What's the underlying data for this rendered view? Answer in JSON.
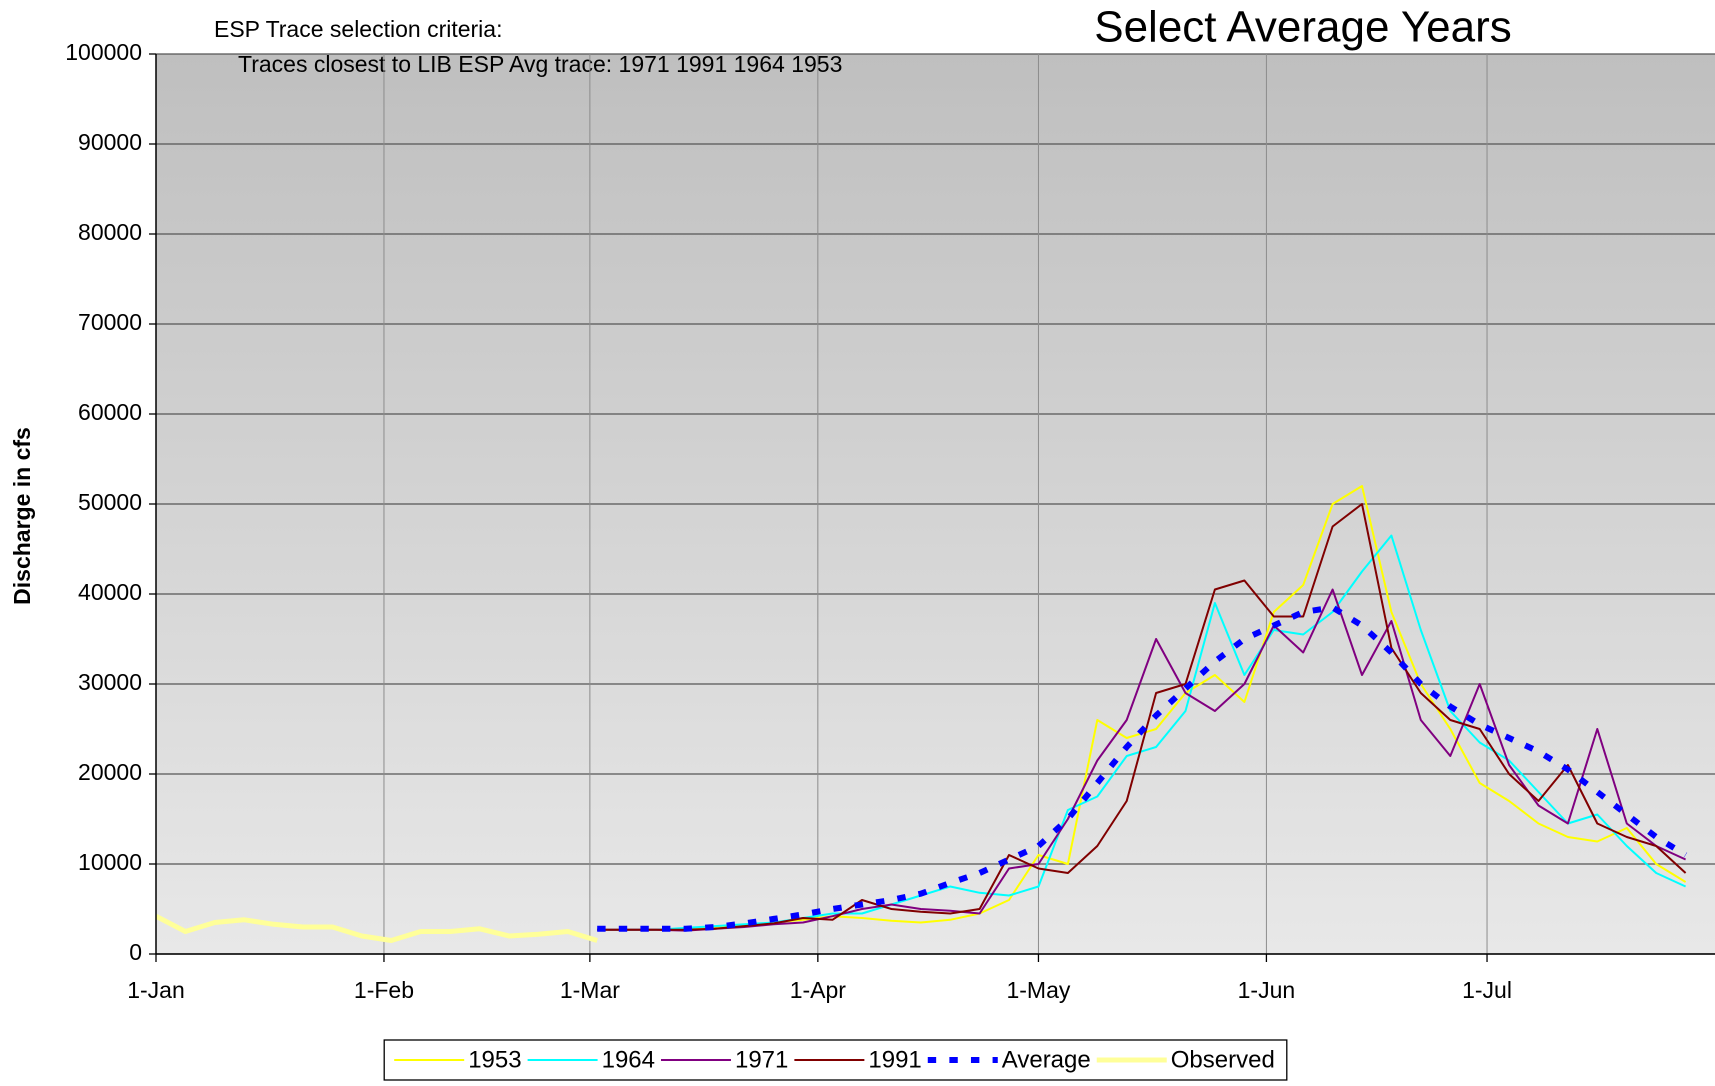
{
  "chart_data": {
    "type": "line",
    "title": "Select Average Years",
    "annotations": [
      "ESP Trace selection criteria:",
      "Traces closest to LIB ESP Avg trace:  1971 1991 1964 1953"
    ],
    "y_label": "Discharge in cfs",
    "x": [
      0,
      4,
      8,
      12,
      16,
      20,
      24,
      28,
      32,
      36,
      40,
      44,
      48,
      52,
      56,
      60,
      64,
      68,
      72,
      76,
      80,
      84,
      88,
      92,
      96,
      100,
      104,
      108,
      112,
      116,
      120,
      124,
      128,
      132,
      136,
      140,
      144,
      148,
      152,
      156,
      160,
      164,
      168,
      172,
      176,
      180,
      184,
      188,
      192,
      196,
      200,
      204,
      208
    ],
    "xlim": [
      0,
      212
    ],
    "xticks": [
      {
        "value": 0,
        "label": "1-Jan"
      },
      {
        "value": 31,
        "label": "1-Feb"
      },
      {
        "value": 59,
        "label": "1-Mar"
      },
      {
        "value": 90,
        "label": "1-Apr"
      },
      {
        "value": 120,
        "label": "1-May"
      },
      {
        "value": 151,
        "label": "1-Jun"
      },
      {
        "value": 181,
        "label": "1-Jul"
      }
    ],
    "ylim": [
      0,
      100000
    ],
    "yticks": [
      0,
      10000,
      20000,
      30000,
      40000,
      50000,
      60000,
      70000,
      80000,
      90000,
      100000
    ],
    "grid": true,
    "legend": "bottom",
    "series": [
      {
        "name": "1953",
        "color": "#ffff00",
        "line_width": 2,
        "dashed": false,
        "values": [
          null,
          null,
          null,
          null,
          null,
          null,
          null,
          null,
          null,
          null,
          null,
          null,
          null,
          null,
          null,
          2700,
          2700,
          2700,
          2800,
          3000,
          3200,
          3500,
          3800,
          4200,
          4000,
          3700,
          3500,
          3800,
          4500,
          6000,
          11000,
          10000,
          26000,
          24000,
          25000,
          29000,
          31000,
          28000,
          38000,
          41000,
          50000,
          52000,
          38000,
          30000,
          25000,
          19000,
          17000,
          14500,
          13000,
          12500,
          14000,
          10000,
          8000
        ]
      },
      {
        "name": "1964",
        "color": "#00ffff",
        "line_width": 2,
        "dashed": false,
        "values": [
          null,
          null,
          null,
          null,
          null,
          null,
          null,
          null,
          null,
          null,
          null,
          null,
          null,
          null,
          null,
          2700,
          2700,
          2700,
          2900,
          3100,
          3300,
          3500,
          4000,
          4500,
          4500,
          5500,
          6500,
          7500,
          6800,
          6500,
          7500,
          16000,
          17500,
          22000,
          23000,
          27000,
          39000,
          31000,
          36000,
          35500,
          38000,
          42500,
          46500,
          36000,
          27000,
          23500,
          21500,
          18000,
          14500,
          15500,
          12000,
          9000,
          7500
        ]
      },
      {
        "name": "1971",
        "color": "#800080",
        "line_width": 2,
        "dashed": false,
        "values": [
          null,
          null,
          null,
          null,
          null,
          null,
          null,
          null,
          null,
          null,
          null,
          null,
          null,
          null,
          null,
          2700,
          2700,
          2700,
          2600,
          2800,
          3000,
          3300,
          3500,
          4200,
          5000,
          5500,
          5000,
          4800,
          4500,
          9500,
          10000,
          15000,
          21500,
          26000,
          35000,
          29000,
          27000,
          30000,
          36500,
          33500,
          40500,
          31000,
          37000,
          26000,
          22000,
          30000,
          21000,
          16500,
          14500,
          25000,
          14500,
          12000,
          10500
        ]
      },
      {
        "name": "1991",
        "color": "#800000",
        "line_width": 2,
        "dashed": false,
        "values": [
          null,
          null,
          null,
          null,
          null,
          null,
          null,
          null,
          null,
          null,
          null,
          null,
          null,
          null,
          null,
          2700,
          2700,
          2700,
          2700,
          2800,
          3100,
          3400,
          4000,
          3800,
          6000,
          5000,
          4700,
          4500,
          5000,
          11000,
          9500,
          9000,
          12000,
          17000,
          29000,
          30000,
          40500,
          41500,
          37500,
          37500,
          47500,
          50000,
          34000,
          29000,
          26000,
          25000,
          20000,
          17000,
          21000,
          14500,
          13000,
          12000,
          9000
        ]
      },
      {
        "name": "Average",
        "color": "#0000ff",
        "line_width": 6,
        "dashed": true,
        "values": [
          null,
          null,
          null,
          null,
          null,
          null,
          null,
          null,
          null,
          null,
          null,
          null,
          null,
          null,
          null,
          2800,
          2800,
          2800,
          2800,
          3000,
          3400,
          3900,
          4400,
          5000,
          5500,
          6000,
          6700,
          7900,
          9000,
          10500,
          12000,
          15000,
          19000,
          23000,
          26500,
          29500,
          32500,
          35000,
          36500,
          38000,
          38500,
          36500,
          33500,
          30000,
          27500,
          25500,
          24000,
          22500,
          20500,
          18000,
          15500,
          13000,
          11000
        ]
      },
      {
        "name": "Observed",
        "color": "#ffff99",
        "line_width": 5,
        "dashed": false,
        "values": [
          4200,
          2500,
          3500,
          3800,
          3300,
          3000,
          3000,
          2000,
          1500,
          2500,
          2500,
          2800,
          2000,
          2200,
          2500,
          1500,
          null,
          null,
          null,
          null,
          null,
          null,
          null,
          null,
          null,
          null,
          null,
          null,
          null,
          null,
          null,
          null,
          null,
          null,
          null,
          null,
          null,
          null,
          null,
          null,
          null,
          null,
          null,
          null,
          null,
          null,
          null,
          null,
          null,
          null,
          null,
          null,
          null
        ]
      }
    ]
  }
}
